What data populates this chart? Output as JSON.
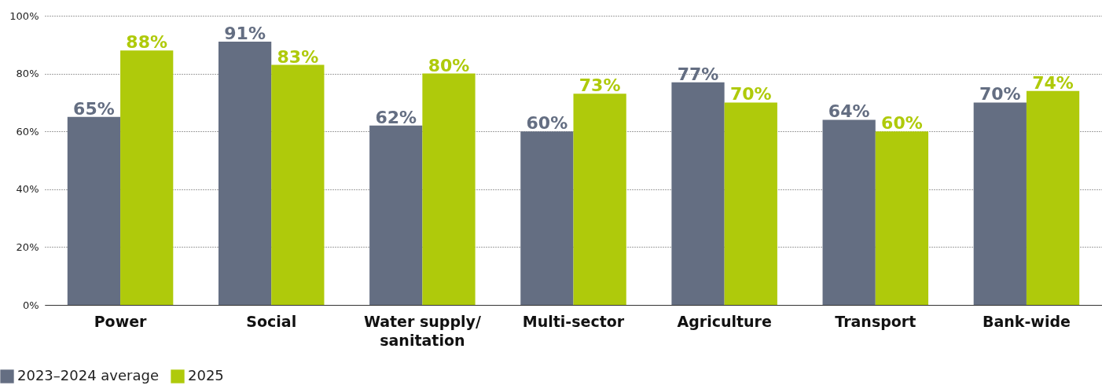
{
  "chart_data": {
    "type": "bar",
    "categories": [
      "Power",
      "Social",
      "Water supply/ sanitation",
      "Multi-sector",
      "Agriculture",
      "Transport",
      "Bank-wide"
    ],
    "series": [
      {
        "name": "2023–2024 average",
        "color": "#646e82",
        "values": [
          65,
          91,
          62,
          60,
          77,
          64,
          70
        ],
        "value_labels": [
          "65%",
          "91%",
          "62%",
          "60%",
          "77%",
          "64%",
          "70%"
        ]
      },
      {
        "name": "2025",
        "color": "#afca0b",
        "values": [
          88,
          83,
          80,
          73,
          70,
          60,
          74
        ],
        "value_labels": [
          "88%",
          "83%",
          "80%",
          "73%",
          "70%",
          "60%",
          "74%"
        ]
      }
    ],
    "ylim": [
      0,
      100
    ],
    "yticks": [
      {
        "value": 0,
        "label": "0%"
      },
      {
        "value": 20,
        "label": "20%"
      },
      {
        "value": 40,
        "label": "40%"
      },
      {
        "value": 60,
        "label": "60%"
      },
      {
        "value": 80,
        "label": "80%"
      },
      {
        "value": 100,
        "label": "100%"
      }
    ],
    "grid": "y",
    "legend": "bottom left"
  }
}
